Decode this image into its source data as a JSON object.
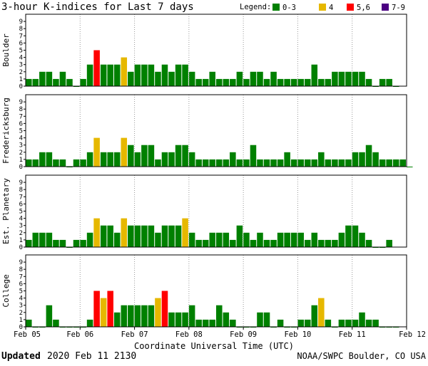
{
  "title": "3-hour K-indices for Last 7 days",
  "legend": {
    "label": "Legend:",
    "items": [
      {
        "label": "0-3",
        "color": "#008000"
      },
      {
        "label": "4",
        "color": "#e6b800"
      },
      {
        "label": "5,6",
        "color": "#ff0000"
      },
      {
        "label": "7-9",
        "color": "#4b0082"
      }
    ]
  },
  "xlabel": "Coordinate Universal Time (UTC)",
  "footer": {
    "updated_label": "Updated",
    "updated_value": "2020 Feb 11 2130",
    "credit": "NOAA/SWPC Boulder, CO USA"
  },
  "chart_data": {
    "type": "bar",
    "x_ticks": [
      "Feb 05",
      "Feb 06",
      "Feb 07",
      "Feb 08",
      "Feb 09",
      "Feb 10",
      "Feb 11",
      "Feb 12"
    ],
    "y_ticks": [
      "0",
      "1",
      "2",
      "3",
      "4",
      "5",
      "6",
      "7",
      "8",
      "9"
    ],
    "ylim": [
      0,
      9
    ],
    "bars_per_day": 8,
    "color_thresholds": {
      "0-3": "#008000",
      "4": "#e6b800",
      "5,6": "#ff0000",
      "7-9": "#4b0082"
    },
    "series": [
      {
        "name": "Boulder",
        "values": [
          1,
          1,
          2,
          2,
          1,
          2,
          1,
          0,
          1,
          3,
          5,
          3,
          3,
          3,
          4,
          2,
          3,
          3,
          3,
          2,
          3,
          2,
          3,
          3,
          2,
          1,
          1,
          2,
          1,
          1,
          1,
          2,
          1,
          2,
          2,
          1,
          2,
          1,
          1,
          1,
          1,
          1,
          3,
          1,
          1,
          2,
          2,
          2,
          2,
          2,
          1,
          0,
          1,
          1,
          0
        ]
      },
      {
        "name": "Fredericksburg",
        "values": [
          1,
          1,
          2,
          2,
          1,
          1,
          0,
          1,
          1,
          2,
          4,
          2,
          2,
          2,
          4,
          3,
          2,
          3,
          3,
          1,
          2,
          2,
          3,
          3,
          2,
          1,
          1,
          1,
          1,
          1,
          2,
          1,
          1,
          3,
          1,
          1,
          1,
          1,
          2,
          1,
          1,
          1,
          1,
          2,
          1,
          1,
          1,
          1,
          2,
          2,
          3,
          2,
          1,
          1,
          1,
          1,
          0
        ]
      },
      {
        "name": "Est. Planetary",
        "values": [
          1,
          2,
          2,
          2,
          1,
          1,
          0,
          1,
          1,
          2,
          4,
          3,
          3,
          2,
          4,
          3,
          3,
          3,
          3,
          2,
          3,
          3,
          3,
          4,
          2,
          1,
          1,
          2,
          2,
          2,
          1,
          3,
          2,
          1,
          2,
          1,
          1,
          2,
          2,
          2,
          2,
          1,
          2,
          1,
          1,
          1,
          2,
          3,
          3,
          2,
          1,
          0,
          0,
          1
        ]
      },
      {
        "name": "College",
        "values": [
          1,
          0,
          0,
          3,
          1,
          0,
          0,
          0,
          0,
          1,
          5,
          4,
          5,
          2,
          3,
          3,
          3,
          3,
          3,
          4,
          5,
          2,
          2,
          2,
          3,
          1,
          1,
          1,
          3,
          2,
          1,
          0,
          0,
          0,
          2,
          2,
          0,
          1,
          0,
          0,
          1,
          1,
          3,
          4,
          1,
          0,
          1,
          1,
          1,
          2,
          1,
          1,
          0,
          0,
          0
        ]
      }
    ]
  }
}
